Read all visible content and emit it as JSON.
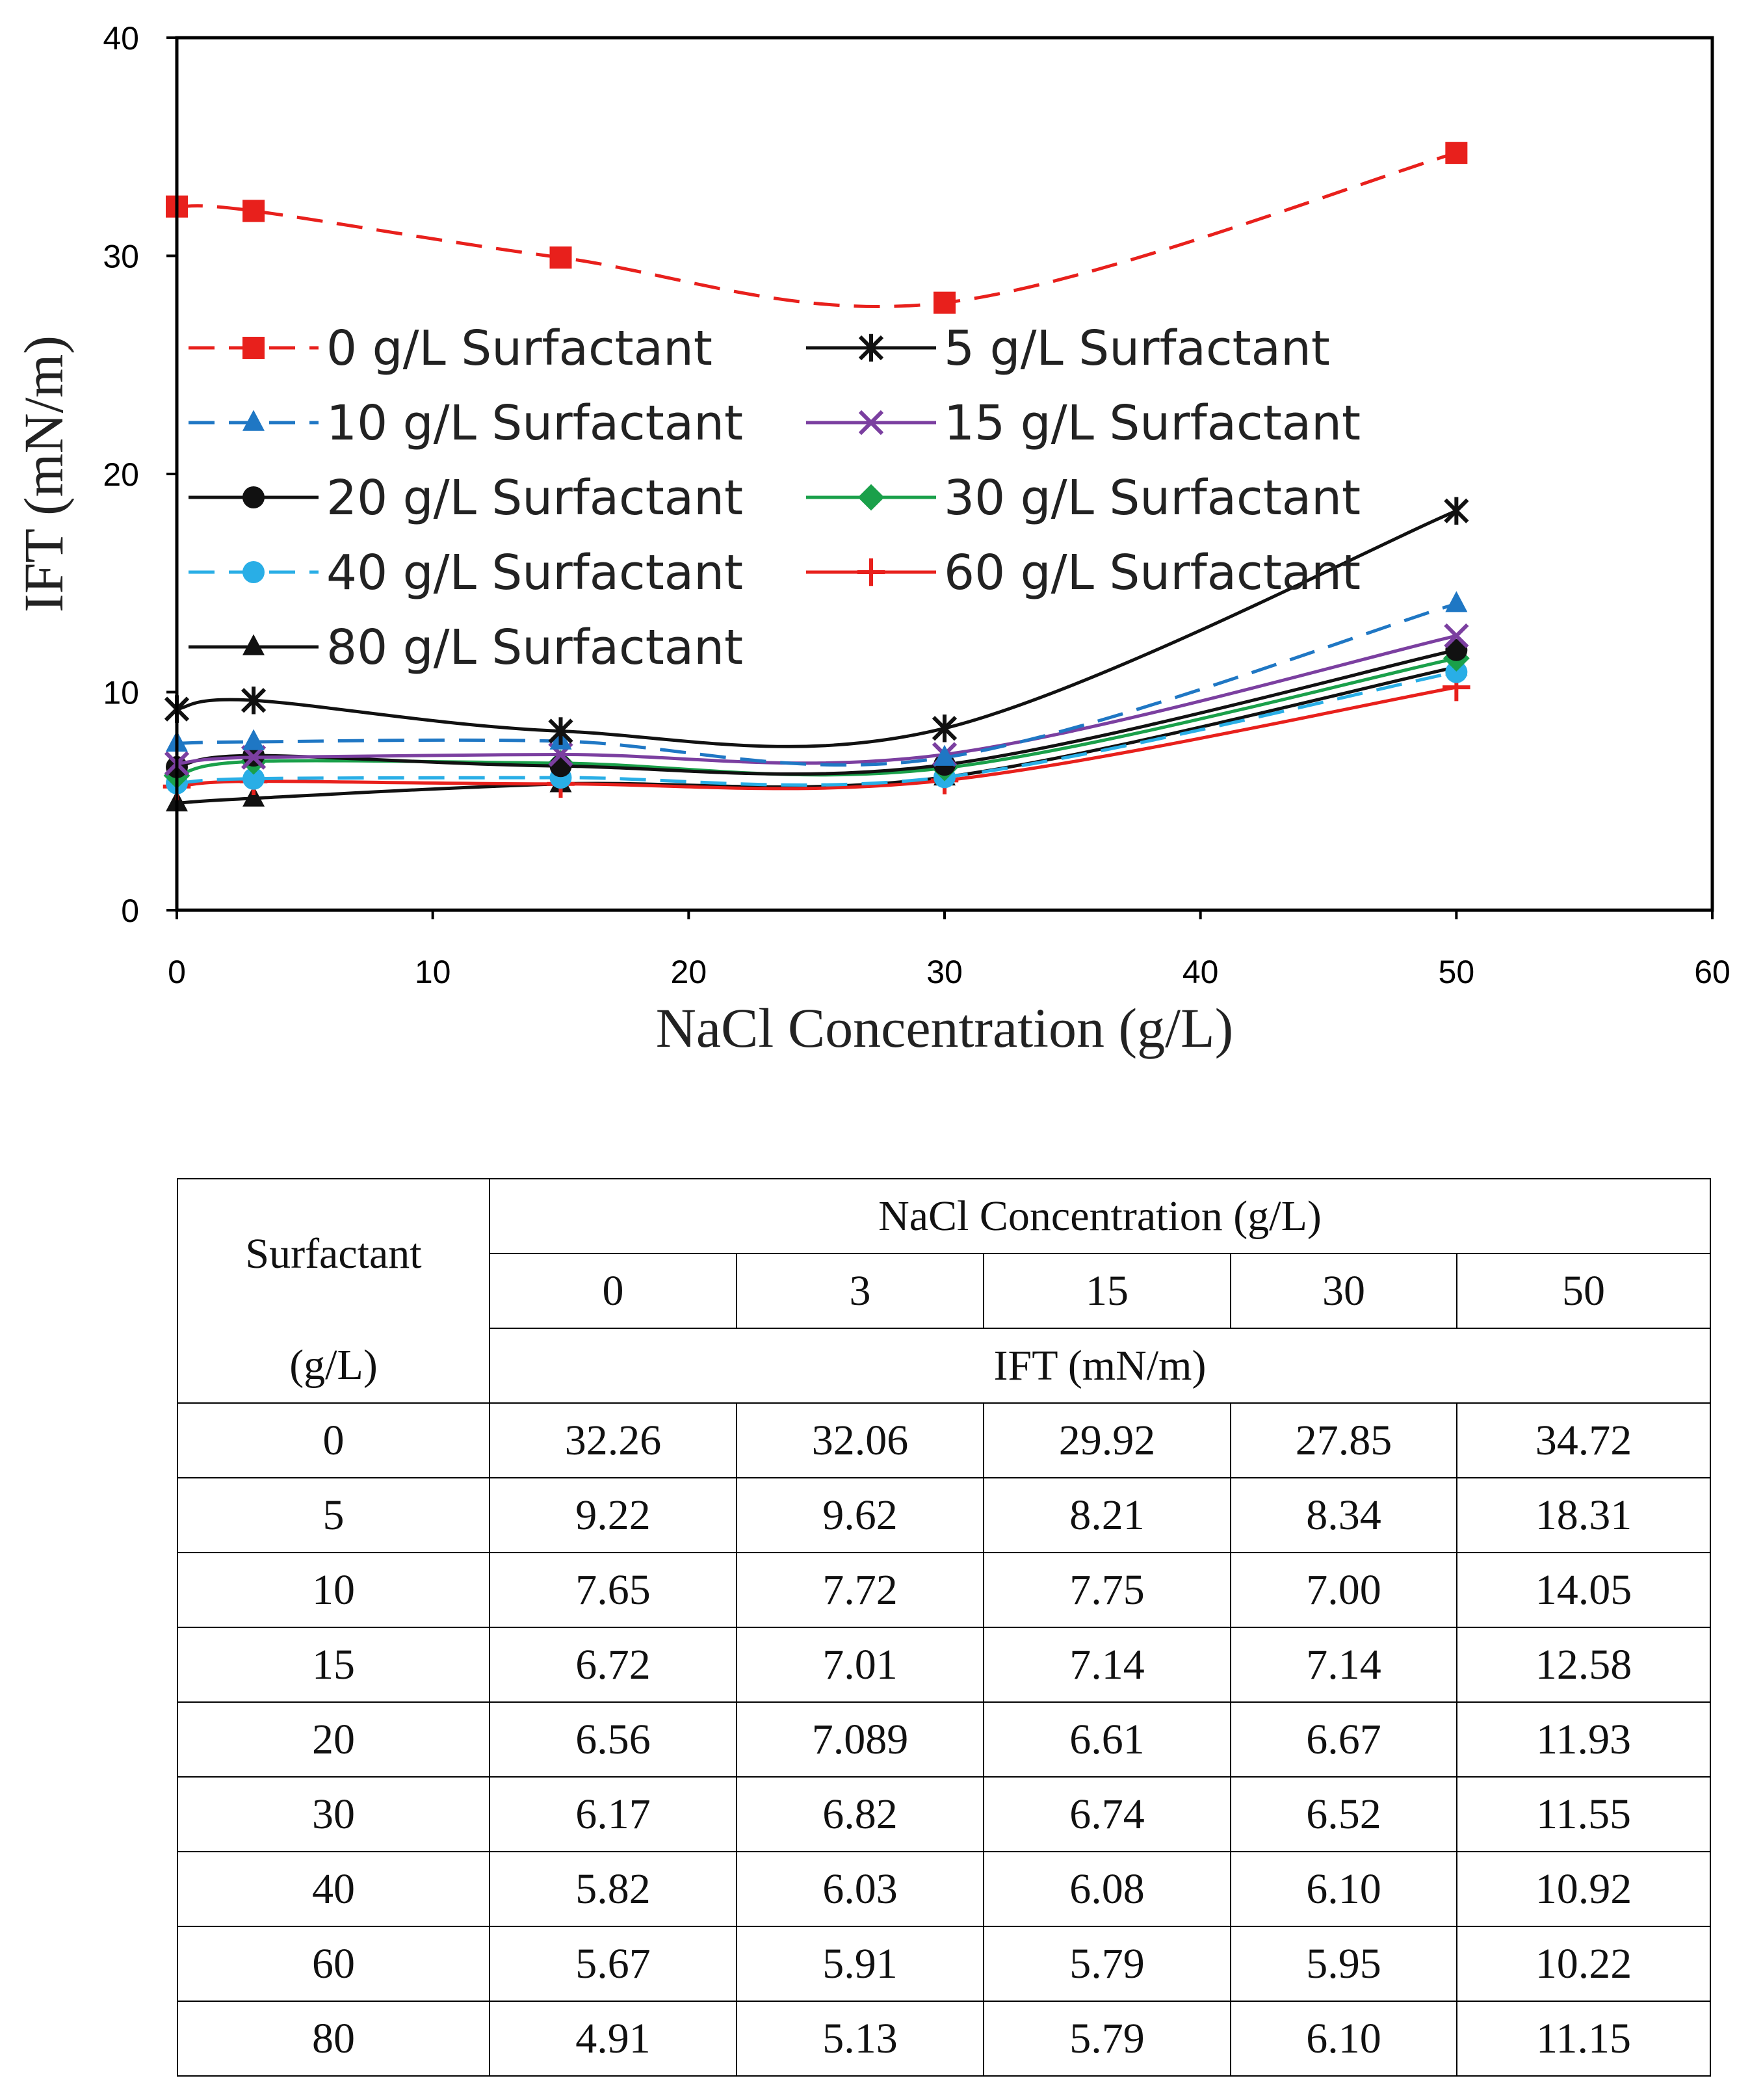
{
  "chart_data": {
    "type": "line",
    "title": "",
    "xlabel": "NaCl Concentration (g/L)",
    "ylabel": "IFT (mN/m)",
    "xlim": [
      0,
      60
    ],
    "ylim": [
      0,
      40
    ],
    "xticks": [
      0,
      10,
      20,
      30,
      40,
      50,
      60
    ],
    "yticks": [
      0,
      10,
      20,
      30,
      40
    ],
    "grid": false,
    "legend_position": "upper-left inside plot, two columns",
    "x": [
      0,
      3,
      15,
      30,
      50
    ],
    "series": [
      {
        "name": "0 g/L Surfactant",
        "values": [
          32.26,
          32.06,
          29.92,
          27.85,
          34.72
        ],
        "color": "#e8201c",
        "dash": "dashed",
        "marker": "square"
      },
      {
        "name": "5 g/L Surfactant",
        "values": [
          9.22,
          9.62,
          8.21,
          8.34,
          18.31
        ],
        "color": "#111111",
        "dash": "solid",
        "marker": "asterisk"
      },
      {
        "name": "10 g/L Surfactant",
        "values": [
          7.65,
          7.72,
          7.75,
          7.0,
          14.05
        ],
        "color": "#1f77c4",
        "dash": "dashed",
        "marker": "triangle"
      },
      {
        "name": "15 g/L Surfactant",
        "values": [
          6.72,
          7.01,
          7.14,
          7.14,
          12.58
        ],
        "color": "#7b3fa0",
        "dash": "solid",
        "marker": "x"
      },
      {
        "name": "20 g/L Surfactant",
        "values": [
          6.56,
          7.089,
          6.61,
          6.67,
          11.93
        ],
        "color": "#111111",
        "dash": "solid",
        "marker": "circle"
      },
      {
        "name": "30 g/L Surfactant",
        "values": [
          6.17,
          6.82,
          6.74,
          6.52,
          11.55
        ],
        "color": "#1aa04a",
        "dash": "solid",
        "marker": "diamond"
      },
      {
        "name": "40 g/L Surfactant",
        "values": [
          5.82,
          6.03,
          6.08,
          6.1,
          10.92
        ],
        "color": "#29aee6",
        "dash": "dashed",
        "marker": "circle"
      },
      {
        "name": "60 g/L Surfactant",
        "values": [
          5.67,
          5.91,
          5.79,
          5.95,
          10.22
        ],
        "color": "#e8201c",
        "dash": "solid",
        "marker": "plus"
      },
      {
        "name": "80 g/L Surfactant",
        "values": [
          4.91,
          5.13,
          5.79,
          6.1,
          11.15
        ],
        "color": "#111111",
        "dash": "solid",
        "marker": "triangle"
      }
    ]
  },
  "table": {
    "surfactant_header": "Surfactant",
    "surfactant_unit": "(g/L)",
    "nacl_header": "NaCl Concentration (g/L)",
    "concentrations": [
      "0",
      "3",
      "15",
      "30",
      "50"
    ],
    "ift_header": "IFT (mN/m)",
    "rows": [
      {
        "surfactant": "0",
        "values": [
          "32.26",
          "32.06",
          "29.92",
          "27.85",
          "34.72"
        ]
      },
      {
        "surfactant": "5",
        "values": [
          "9.22",
          "9.62",
          "8.21",
          "8.34",
          "18.31"
        ]
      },
      {
        "surfactant": "10",
        "values": [
          "7.65",
          "7.72",
          "7.75",
          "7.00",
          "14.05"
        ]
      },
      {
        "surfactant": "15",
        "values": [
          "6.72",
          "7.01",
          "7.14",
          "7.14",
          "12.58"
        ]
      },
      {
        "surfactant": "20",
        "values": [
          "6.56",
          "7.089",
          "6.61",
          "6.67",
          "11.93"
        ]
      },
      {
        "surfactant": "30",
        "values": [
          "6.17",
          "6.82",
          "6.74",
          "6.52",
          "11.55"
        ]
      },
      {
        "surfactant": "40",
        "values": [
          "5.82",
          "6.03",
          "6.08",
          "6.10",
          "10.92"
        ]
      },
      {
        "surfactant": "60",
        "values": [
          "5.67",
          "5.91",
          "5.79",
          "5.95",
          "10.22"
        ]
      },
      {
        "surfactant": "80",
        "values": [
          "4.91",
          "5.13",
          "5.79",
          "6.10",
          "11.15"
        ]
      }
    ]
  }
}
